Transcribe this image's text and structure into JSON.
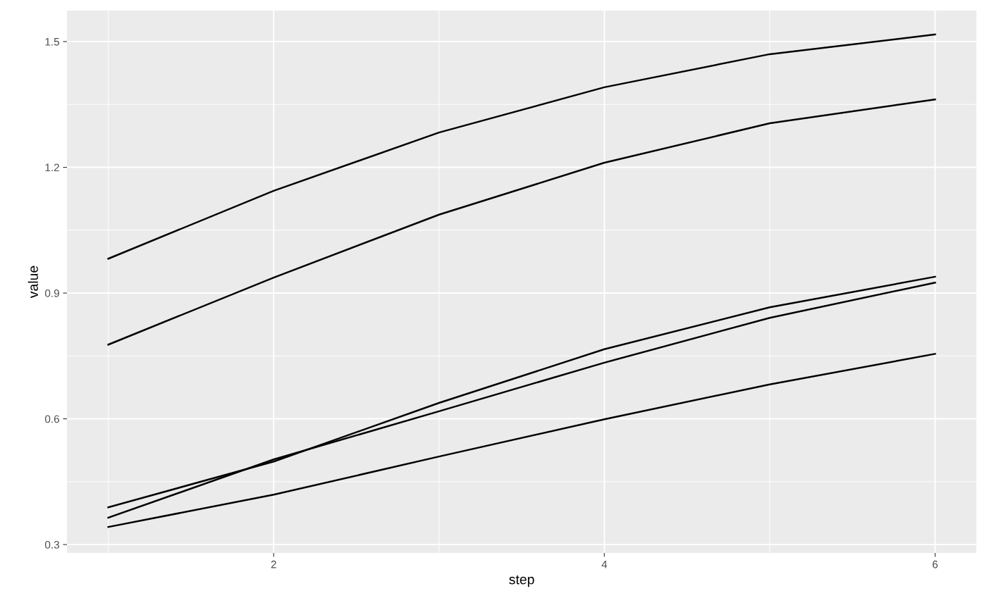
{
  "chart_data": {
    "type": "line",
    "xlabel": "step",
    "ylabel": "value",
    "x": [
      1,
      2,
      3,
      4,
      5,
      6
    ],
    "series": [
      {
        "color": "#000000",
        "values": [
          0.982,
          1.144,
          1.283,
          1.391,
          1.47,
          1.517
        ]
      },
      {
        "color": "#000000",
        "values": [
          0.777,
          0.937,
          1.087,
          1.211,
          1.305,
          1.362
        ]
      },
      {
        "color": "#000000",
        "values": [
          0.389,
          0.498,
          0.638,
          0.766,
          0.866,
          0.939
        ]
      },
      {
        "color": "#000000",
        "values": [
          0.364,
          0.503,
          0.618,
          0.734,
          0.841,
          0.925
        ]
      },
      {
        "color": "#000000",
        "values": [
          0.342,
          0.419,
          0.51,
          0.599,
          0.682,
          0.755
        ]
      }
    ],
    "xlim": [
      0.75,
      6.25
    ],
    "ylim": [
      0.28,
      1.574
    ],
    "xticks": [
      2,
      4,
      6
    ],
    "yticks": [
      0.3,
      0.6,
      0.9,
      1.2,
      1.5
    ],
    "grid": true,
    "marker": "none",
    "line_style": "solid"
  }
}
